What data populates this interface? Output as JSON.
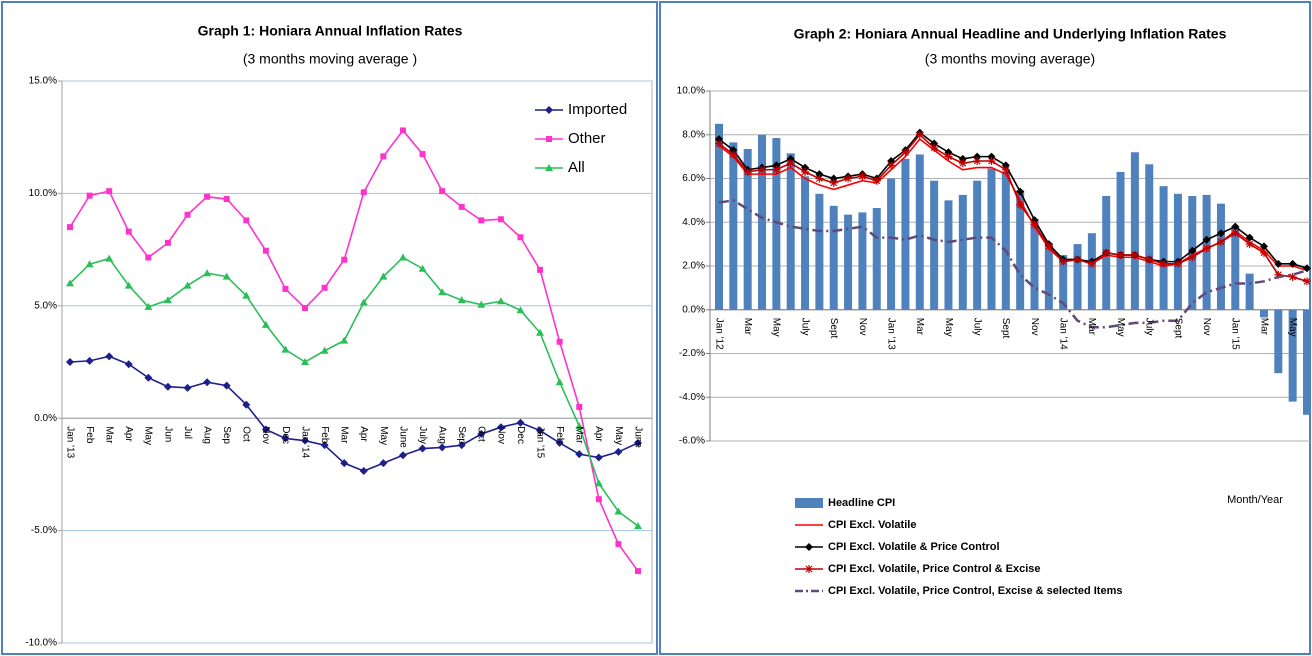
{
  "chart_data": [
    {
      "type": "line",
      "title": "Graph 1:  Honiara Annual Inflation Rates",
      "subtitle": "(3 months moving average )",
      "categories": [
        "Jan '13",
        "Feb",
        "Mar",
        "Apr",
        "May",
        "Jun",
        "Jul",
        "Aug",
        "Sep",
        "Oct",
        "Nov",
        "Dec",
        "Jan '14",
        "Feb",
        "Mar",
        "Apr",
        "May",
        "June",
        "July",
        "Aug",
        "Sep",
        "Oct",
        "Nov",
        "Dec",
        "Jan '15",
        "Feb",
        "Mar",
        "Apr",
        "May",
        "June"
      ],
      "series": [
        {
          "name": "Imported",
          "color": "#1f1f8c",
          "marker": "diamond",
          "values": [
            2.5,
            2.55,
            2.75,
            2.4,
            1.8,
            1.4,
            1.35,
            1.6,
            1.45,
            0.6,
            -0.5,
            -0.9,
            -1.0,
            -1.2,
            -2.0,
            -2.35,
            -2.0,
            -1.65,
            -1.35,
            -1.3,
            -1.2,
            -0.7,
            -0.4,
            -0.2,
            -0.55,
            -1.1,
            -1.6,
            -1.75,
            -1.5,
            -1.1
          ]
        },
        {
          "name": "Other",
          "color": "#ff33cc",
          "marker": "square",
          "values": [
            8.5,
            9.9,
            10.1,
            8.3,
            7.15,
            7.8,
            9.05,
            9.85,
            9.75,
            8.8,
            7.45,
            5.75,
            4.9,
            5.8,
            7.05,
            10.05,
            11.65,
            12.8,
            11.75,
            10.1,
            9.4,
            8.8,
            8.85,
            8.05,
            6.6,
            3.4,
            0.5,
            -3.6,
            -5.6,
            -6.8
          ]
        },
        {
          "name": "All",
          "color": "#2bbf5a",
          "marker": "triangle",
          "values": [
            6.0,
            6.85,
            7.1,
            5.9,
            4.95,
            5.25,
            5.9,
            6.45,
            6.3,
            5.45,
            4.15,
            3.05,
            2.5,
            3.0,
            3.45,
            5.15,
            6.3,
            7.15,
            6.65,
            5.6,
            5.25,
            5.05,
            5.2,
            4.8,
            3.8,
            1.6,
            -0.35,
            -2.9,
            -4.15,
            -4.8
          ]
        }
      ],
      "ylim": [
        -10,
        15
      ],
      "yticks": [
        {
          "value": -10,
          "label": "-10.0%"
        },
        {
          "value": -5,
          "label": "-5.0%"
        },
        {
          "value": 0,
          "label": "0.0%"
        },
        {
          "value": 5,
          "label": "5.0%"
        },
        {
          "value": 10,
          "label": "10.0%"
        },
        {
          "value": 15,
          "label": "15.0%"
        }
      ],
      "grid": true,
      "grid_color": "#a8c4e6",
      "legend": "upper right"
    },
    {
      "type": "combo",
      "title": "Graph 2:     Honiara Annual Headline and Underlying Inflation Rates",
      "subtitle": "(3 months moving average)",
      "x_label": "Month/Year",
      "categories": [
        "Jan '12",
        null,
        "Mar",
        null,
        "May",
        null,
        "July",
        null,
        "Sept",
        null,
        "Nov",
        null,
        "Jan '13",
        null,
        "Mar",
        null,
        "May",
        null,
        "July",
        null,
        "Sept",
        null,
        "Nov",
        null,
        "Jan '14",
        null,
        "Mar",
        null,
        "May",
        null,
        "July",
        null,
        "Sept",
        null,
        "Nov",
        null,
        "Jan '15",
        null,
        "Mar",
        null,
        "May",
        null
      ],
      "series": [
        {
          "name": "Headline CPI",
          "type": "bar",
          "color": "#4f81bd",
          "values": [
            8.5,
            7.65,
            7.35,
            8.0,
            7.85,
            7.15,
            6.1,
            5.3,
            4.75,
            4.35,
            4.45,
            4.65,
            6.0,
            6.9,
            7.1,
            5.9,
            5.0,
            5.25,
            5.9,
            6.45,
            6.3,
            5.45,
            4.15,
            3.05,
            2.5,
            3.0,
            3.5,
            5.2,
            6.3,
            7.2,
            6.65,
            5.65,
            5.3,
            5.2,
            5.25,
            4.85,
            3.8,
            1.65,
            -0.35,
            -2.9,
            -4.2,
            -4.8
          ]
        },
        {
          "name": "CPI Excl. Volatile",
          "type": "line",
          "color": "#ff0000",
          "marker": "none",
          "values": [
            7.5,
            7.0,
            6.2,
            6.2,
            6.2,
            6.5,
            6.0,
            5.7,
            5.5,
            5.7,
            5.9,
            5.8,
            6.4,
            7.0,
            7.8,
            7.3,
            6.8,
            6.4,
            6.5,
            6.5,
            6.2,
            5.0,
            3.8,
            2.8,
            2.2,
            2.3,
            2.1,
            2.5,
            2.4,
            2.4,
            2.2,
            2.0,
            2.1,
            2.5,
            2.8,
            3.1,
            3.6,
            3.1,
            2.7,
            2.0,
            2.0,
            1.8
          ]
        },
        {
          "name": "CPI Excl. Volatile & Price Control",
          "type": "line",
          "color": "#000000",
          "marker": "diamond",
          "values": [
            7.8,
            7.3,
            6.4,
            6.5,
            6.6,
            6.9,
            6.5,
            6.2,
            6.0,
            6.1,
            6.2,
            6.0,
            6.8,
            7.3,
            8.1,
            7.6,
            7.2,
            6.9,
            7.0,
            7.0,
            6.6,
            5.4,
            4.1,
            3.0,
            2.3,
            2.3,
            2.2,
            2.6,
            2.5,
            2.5,
            2.3,
            2.2,
            2.2,
            2.7,
            3.2,
            3.5,
            3.8,
            3.3,
            2.9,
            2.1,
            2.1,
            1.9
          ]
        },
        {
          "name": "CPI Excl. Volatile, Price Control & Excise",
          "type": "line",
          "color": "#c00000",
          "marker": "star",
          "values": [
            7.6,
            7.1,
            6.3,
            6.4,
            6.4,
            6.7,
            6.3,
            6.0,
            5.8,
            6.0,
            6.1,
            5.9,
            6.6,
            7.2,
            8.0,
            7.4,
            7.0,
            6.7,
            6.8,
            6.8,
            6.4,
            4.8,
            3.9,
            2.9,
            2.2,
            2.3,
            2.1,
            2.6,
            2.5,
            2.5,
            2.3,
            2.1,
            2.1,
            2.4,
            2.8,
            3.1,
            3.5,
            3.0,
            2.6,
            1.6,
            1.5,
            1.3
          ]
        },
        {
          "name": "CPI Excl. Volatile, Price Control, Excise & selected Items",
          "type": "line",
          "color": "#604a7b",
          "marker": "none",
          "dash": true,
          "values": [
            4.9,
            5.0,
            4.6,
            4.2,
            4.0,
            3.8,
            3.7,
            3.6,
            3.6,
            3.7,
            3.8,
            3.3,
            3.3,
            3.2,
            3.4,
            3.2,
            3.1,
            3.2,
            3.3,
            3.3,
            2.7,
            1.6,
            1.0,
            0.7,
            0.3,
            -0.5,
            -0.8,
            -0.8,
            -0.7,
            -0.6,
            -0.6,
            -0.5,
            -0.5,
            0.3,
            0.8,
            1.0,
            1.2,
            1.2,
            1.3,
            1.5,
            1.6,
            1.8
          ]
        }
      ],
      "ylim": [
        -6,
        10
      ],
      "yticks": [
        {
          "value": -6,
          "label": "-6.0%"
        },
        {
          "value": -4,
          "label": "-4.0%"
        },
        {
          "value": -2,
          "label": "-2.0%"
        },
        {
          "value": 0,
          "label": "0.0%"
        },
        {
          "value": 2,
          "label": "2.0%"
        },
        {
          "value": 4,
          "label": "4.0%"
        },
        {
          "value": 6,
          "label": "6.0%"
        },
        {
          "value": 8,
          "label": "8.0%"
        },
        {
          "value": 10,
          "label": "10.0%"
        }
      ],
      "grid": true,
      "grid_color": "#b0b0b0",
      "legend": "bottom"
    }
  ]
}
